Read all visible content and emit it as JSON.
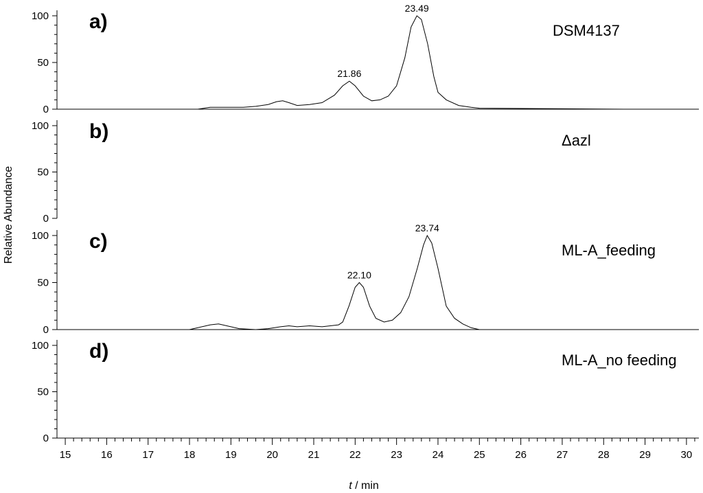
{
  "chart_data": {
    "type": "line",
    "title": "",
    "xlabel_italic": "t",
    "xlabel_rest": " / min",
    "ylabel": "Relative Abundance",
    "xlim": [
      14.8,
      30.3
    ],
    "ylim": [
      0,
      100
    ],
    "x_ticks": [
      15,
      16,
      17,
      18,
      19,
      20,
      21,
      22,
      23,
      24,
      25,
      26,
      27,
      28,
      29,
      30
    ],
    "y_ticks": [
      0,
      50,
      100
    ],
    "grid": false,
    "panels": [
      {
        "letter": "a)",
        "sample": "DSM4137",
        "baseline": [
          14.8,
          30.3
        ],
        "series": [
          [
            18.2,
            0
          ],
          [
            18.5,
            2
          ],
          [
            19.0,
            2
          ],
          [
            19.3,
            2
          ],
          [
            19.6,
            3
          ],
          [
            19.9,
            5
          ],
          [
            20.1,
            8
          ],
          [
            20.25,
            9
          ],
          [
            20.4,
            7
          ],
          [
            20.6,
            4
          ],
          [
            20.9,
            5
          ],
          [
            21.2,
            7
          ],
          [
            21.5,
            15
          ],
          [
            21.7,
            25
          ],
          [
            21.86,
            30
          ],
          [
            22.0,
            25
          ],
          [
            22.2,
            14
          ],
          [
            22.4,
            9
          ],
          [
            22.6,
            10
          ],
          [
            22.8,
            14
          ],
          [
            23.0,
            25
          ],
          [
            23.2,
            55
          ],
          [
            23.35,
            88
          ],
          [
            23.49,
            100
          ],
          [
            23.6,
            96
          ],
          [
            23.75,
            70
          ],
          [
            23.9,
            35
          ],
          [
            24.0,
            18
          ],
          [
            24.2,
            10
          ],
          [
            24.5,
            4
          ],
          [
            24.8,
            2
          ],
          [
            25.0,
            1
          ],
          [
            28.5,
            0
          ]
        ],
        "peaks": [
          {
            "x": 21.86,
            "y": 30,
            "label": "21.86"
          },
          {
            "x": 23.49,
            "y": 100,
            "label": "23.49"
          }
        ]
      },
      {
        "letter": "b)",
        "sample": "Δazl",
        "baseline": null,
        "series": [],
        "peaks": []
      },
      {
        "letter": "c)",
        "sample": "ML-A_feeding",
        "baseline": [
          14.8,
          30.3
        ],
        "series": [
          [
            18.0,
            0
          ],
          [
            18.2,
            2
          ],
          [
            18.5,
            5
          ],
          [
            18.7,
            6
          ],
          [
            18.9,
            4
          ],
          [
            19.2,
            1
          ],
          [
            19.6,
            0
          ],
          [
            19.9,
            1
          ],
          [
            20.2,
            3
          ],
          [
            20.4,
            4
          ],
          [
            20.6,
            3
          ],
          [
            20.9,
            4
          ],
          [
            21.2,
            3
          ],
          [
            21.4,
            4
          ],
          [
            21.6,
            5
          ],
          [
            21.7,
            8
          ],
          [
            21.85,
            25
          ],
          [
            22.0,
            45
          ],
          [
            22.1,
            50
          ],
          [
            22.2,
            45
          ],
          [
            22.35,
            25
          ],
          [
            22.5,
            12
          ],
          [
            22.7,
            8
          ],
          [
            22.9,
            10
          ],
          [
            23.1,
            18
          ],
          [
            23.3,
            35
          ],
          [
            23.5,
            65
          ],
          [
            23.65,
            90
          ],
          [
            23.74,
            100
          ],
          [
            23.85,
            92
          ],
          [
            24.0,
            65
          ],
          [
            24.2,
            25
          ],
          [
            24.4,
            12
          ],
          [
            24.6,
            6
          ],
          [
            24.8,
            2
          ],
          [
            25.0,
            0
          ]
        ],
        "peaks": [
          {
            "x": 22.1,
            "y": 50,
            "label": "22.10"
          },
          {
            "x": 23.74,
            "y": 100,
            "label": "23.74"
          }
        ]
      },
      {
        "letter": "d)",
        "sample": "ML-A_no feeding",
        "baseline": null,
        "series": [],
        "peaks": []
      }
    ]
  }
}
